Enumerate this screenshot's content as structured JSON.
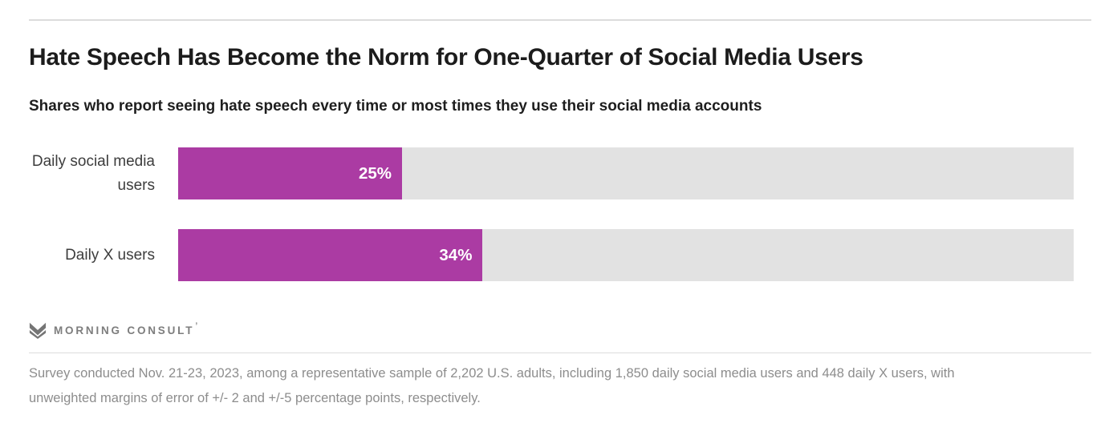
{
  "header": {
    "title": "Hate Speech Has Become the Norm for One-Quarter of Social Media Users",
    "subtitle": "Shares who report seeing hate speech every time or most times they use their social media accounts"
  },
  "chart_data": {
    "type": "bar",
    "orientation": "horizontal",
    "title": "Hate Speech Has Become the Norm for One-Quarter of Social Media Users",
    "subtitle": "Shares who report seeing hate speech every time or most times they use their social media accounts",
    "categories": [
      "Daily social media users",
      "Daily X users"
    ],
    "values": [
      25,
      34
    ],
    "value_labels": [
      "25%",
      "34%"
    ],
    "xlim": [
      0,
      100
    ],
    "grid": false,
    "legend": false,
    "bar_color": "#ab3ba3",
    "track_color": "#e2e2e2",
    "value_label_color": "#ffffff",
    "category_label_color": "#3d3d3d"
  },
  "branding": {
    "logo_text": "MORNING CONSULT",
    "logo_tick": "’",
    "logo_color": "#7d7d7d"
  },
  "footnote": {
    "lines": [
      "Survey conducted Nov. 21-23, 2023, among a representative sample of 2,202 U.S. adults, including 1,850 daily social media users and 448 daily X users, with",
      "unweighted margins of error of +/- 2 and +/-5 percentage points, respectively."
    ],
    "full_text": "Survey conducted Nov. 21-23, 2023, among a representative sample of 2,202 U.S. adults, including 1,850 daily social media users and 448 daily X users, with unweighted margins of error of +/- 2 and +/-5 percentage points, respectively."
  }
}
